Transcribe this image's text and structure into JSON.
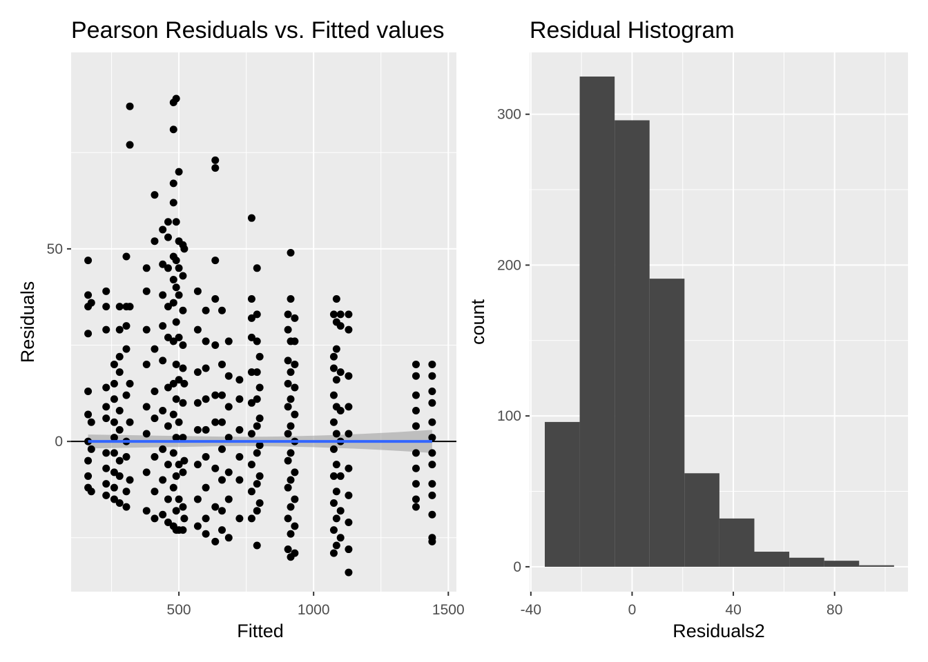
{
  "chart_data": [
    {
      "type": "scatter",
      "title": "Pearson Residuals vs. Fitted values",
      "xlabel": "Fitted",
      "ylabel": "Residuals",
      "xlim": [
        100,
        1530
      ],
      "ylim": [
        -39,
        101
      ],
      "x_ticks": [
        500,
        1000,
        1500
      ],
      "y_ticks": [
        0,
        50
      ],
      "grid": true,
      "hline": 0,
      "smooth": {
        "method": "lm",
        "color": "#3366FF",
        "band_color": "#999999",
        "x_range": [
          163,
          1440
        ],
        "y_values": [
          0,
          0
        ],
        "band_half_width": [
          1.2,
          3.0
        ]
      },
      "x_clusters": [
        163,
        230,
        260,
        280,
        305,
        330,
        380,
        415,
        440,
        460,
        480,
        500,
        515,
        570,
        600,
        635,
        660,
        685,
        725,
        770,
        800,
        860,
        915,
        930,
        1085,
        1100,
        1130,
        1380,
        1440
      ],
      "points": [
        [
          163,
          47
        ],
        [
          163,
          38
        ],
        [
          163,
          35
        ],
        [
          163,
          28
        ],
        [
          163,
          13
        ],
        [
          163,
          7
        ],
        [
          163,
          0
        ],
        [
          163,
          -5
        ],
        [
          163,
          -9
        ],
        [
          163,
          -12
        ],
        [
          175,
          36
        ],
        [
          175,
          5
        ],
        [
          175,
          -2
        ],
        [
          175,
          -13
        ],
        [
          230,
          39
        ],
        [
          230,
          35
        ],
        [
          230,
          29
        ],
        [
          230,
          14
        ],
        [
          230,
          9
        ],
        [
          230,
          6
        ],
        [
          230,
          -3
        ],
        [
          230,
          -7
        ],
        [
          230,
          -11
        ],
        [
          230,
          -14
        ],
        [
          260,
          20
        ],
        [
          260,
          15
        ],
        [
          260,
          11
        ],
        [
          260,
          5
        ],
        [
          260,
          1
        ],
        [
          260,
          -3
        ],
        [
          260,
          -8
        ],
        [
          260,
          -12
        ],
        [
          260,
          -15
        ],
        [
          280,
          35
        ],
        [
          280,
          29
        ],
        [
          280,
          22
        ],
        [
          280,
          18
        ],
        [
          280,
          8
        ],
        [
          280,
          3
        ],
        [
          280,
          -5
        ],
        [
          280,
          -9
        ],
        [
          280,
          -16
        ],
        [
          305,
          48
        ],
        [
          305,
          35
        ],
        [
          305,
          30
        ],
        [
          305,
          24
        ],
        [
          305,
          12
        ],
        [
          305,
          0
        ],
        [
          305,
          -4
        ],
        [
          305,
          -13
        ],
        [
          305,
          -17
        ],
        [
          318,
          87
        ],
        [
          318,
          77
        ],
        [
          318,
          35
        ],
        [
          318,
          15
        ],
        [
          318,
          5
        ],
        [
          318,
          -10
        ],
        [
          380,
          45
        ],
        [
          380,
          39
        ],
        [
          380,
          29
        ],
        [
          380,
          20
        ],
        [
          380,
          9
        ],
        [
          380,
          2
        ],
        [
          380,
          -8
        ],
        [
          380,
          -18
        ],
        [
          410,
          64
        ],
        [
          410,
          52
        ],
        [
          410,
          24
        ],
        [
          410,
          13
        ],
        [
          410,
          6
        ],
        [
          410,
          -4
        ],
        [
          410,
          -13
        ],
        [
          410,
          -20
        ],
        [
          440,
          55
        ],
        [
          440,
          46
        ],
        [
          440,
          38
        ],
        [
          440,
          30
        ],
        [
          440,
          21
        ],
        [
          440,
          8
        ],
        [
          440,
          -2
        ],
        [
          440,
          -10
        ],
        [
          440,
          -19
        ],
        [
          460,
          57
        ],
        [
          460,
          53
        ],
        [
          460,
          45
        ],
        [
          460,
          35
        ],
        [
          460,
          27
        ],
        [
          460,
          14
        ],
        [
          460,
          4
        ],
        [
          460,
          -6
        ],
        [
          460,
          -15
        ],
        [
          460,
          -21
        ],
        [
          480,
          81
        ],
        [
          480,
          88
        ],
        [
          480,
          67
        ],
        [
          480,
          62
        ],
        [
          480,
          48
        ],
        [
          480,
          42
        ],
        [
          480,
          36
        ],
        [
          480,
          26
        ],
        [
          480,
          15
        ],
        [
          480,
          7
        ],
        [
          480,
          -3
        ],
        [
          480,
          -12
        ],
        [
          480,
          -22
        ],
        [
          490,
          89
        ],
        [
          490,
          57
        ],
        [
          490,
          47
        ],
        [
          490,
          40
        ],
        [
          490,
          31
        ],
        [
          490,
          20
        ],
        [
          490,
          11
        ],
        [
          490,
          1
        ],
        [
          490,
          -9
        ],
        [
          490,
          -18
        ],
        [
          490,
          -23
        ],
        [
          500,
          70
        ],
        [
          500,
          52
        ],
        [
          500,
          45
        ],
        [
          500,
          38
        ],
        [
          500,
          27
        ],
        [
          500,
          16
        ],
        [
          500,
          5
        ],
        [
          500,
          -6
        ],
        [
          500,
          -15
        ],
        [
          500,
          -23
        ],
        [
          515,
          51
        ],
        [
          515,
          43
        ],
        [
          515,
          34
        ],
        [
          515,
          25
        ],
        [
          515,
          19
        ],
        [
          515,
          10
        ],
        [
          515,
          1
        ],
        [
          515,
          -8
        ],
        [
          515,
          -17
        ],
        [
          515,
          -23
        ],
        [
          520,
          50
        ],
        [
          520,
          15
        ],
        [
          520,
          -5
        ],
        [
          520,
          -20
        ],
        [
          570,
          39
        ],
        [
          570,
          29
        ],
        [
          570,
          18
        ],
        [
          570,
          10
        ],
        [
          570,
          3
        ],
        [
          570,
          -6
        ],
        [
          570,
          -15
        ],
        [
          570,
          -22
        ],
        [
          600,
          34
        ],
        [
          600,
          26
        ],
        [
          600,
          19
        ],
        [
          600,
          11
        ],
        [
          600,
          3
        ],
        [
          600,
          -4
        ],
        [
          600,
          -12
        ],
        [
          600,
          -20
        ],
        [
          600,
          -24
        ],
        [
          635,
          73
        ],
        [
          635,
          71
        ],
        [
          635,
          47
        ],
        [
          635,
          37
        ],
        [
          635,
          25
        ],
        [
          635,
          12
        ],
        [
          635,
          5
        ],
        [
          635,
          -7
        ],
        [
          635,
          -17
        ],
        [
          635,
          -26
        ],
        [
          660,
          34
        ],
        [
          660,
          20
        ],
        [
          660,
          12
        ],
        [
          660,
          5
        ],
        [
          660,
          -2
        ],
        [
          660,
          -10
        ],
        [
          660,
          -18
        ],
        [
          660,
          -23
        ],
        [
          685,
          26
        ],
        [
          685,
          17
        ],
        [
          685,
          9
        ],
        [
          685,
          1
        ],
        [
          685,
          -8
        ],
        [
          685,
          -15
        ],
        [
          685,
          -25
        ],
        [
          725,
          16
        ],
        [
          725,
          11
        ],
        [
          725,
          3
        ],
        [
          725,
          -4
        ],
        [
          725,
          -10
        ],
        [
          725,
          -20
        ],
        [
          770,
          58
        ],
        [
          770,
          37
        ],
        [
          770,
          32
        ],
        [
          770,
          27
        ],
        [
          770,
          18
        ],
        [
          770,
          10
        ],
        [
          770,
          2
        ],
        [
          770,
          -6
        ],
        [
          770,
          -13
        ],
        [
          770,
          -20
        ],
        [
          790,
          45
        ],
        [
          790,
          33
        ],
        [
          790,
          26
        ],
        [
          790,
          18
        ],
        [
          790,
          11
        ],
        [
          790,
          4
        ],
        [
          790,
          -3
        ],
        [
          790,
          -11
        ],
        [
          790,
          -18
        ],
        [
          790,
          -27
        ],
        [
          800,
          22
        ],
        [
          800,
          14
        ],
        [
          800,
          6
        ],
        [
          800,
          -1
        ],
        [
          800,
          -9
        ],
        [
          800,
          -16
        ],
        [
          905,
          33
        ],
        [
          905,
          29
        ],
        [
          905,
          21
        ],
        [
          905,
          15
        ],
        [
          905,
          9
        ],
        [
          905,
          2
        ],
        [
          905,
          -5
        ],
        [
          905,
          -12
        ],
        [
          905,
          -20
        ],
        [
          905,
          -28
        ],
        [
          915,
          49
        ],
        [
          915,
          37
        ],
        [
          915,
          26
        ],
        [
          915,
          18
        ],
        [
          915,
          11
        ],
        [
          915,
          4
        ],
        [
          915,
          -3
        ],
        [
          915,
          -10
        ],
        [
          915,
          -17
        ],
        [
          915,
          -24
        ],
        [
          915,
          -30
        ],
        [
          930,
          32
        ],
        [
          930,
          26
        ],
        [
          930,
          20
        ],
        [
          930,
          14
        ],
        [
          930,
          7
        ],
        [
          930,
          0
        ],
        [
          930,
          -8
        ],
        [
          930,
          -15
        ],
        [
          930,
          -22
        ],
        [
          930,
          -29
        ],
        [
          1075,
          33
        ],
        [
          1075,
          22
        ],
        [
          1075,
          19
        ],
        [
          1075,
          12
        ],
        [
          1075,
          5
        ],
        [
          1075,
          -2
        ],
        [
          1075,
          -9
        ],
        [
          1075,
          -16
        ],
        [
          1075,
          -23
        ],
        [
          1075,
          -29
        ],
        [
          1085,
          37
        ],
        [
          1085,
          31
        ],
        [
          1085,
          24
        ],
        [
          1085,
          16
        ],
        [
          1085,
          9
        ],
        [
          1085,
          2
        ],
        [
          1085,
          -6
        ],
        [
          1085,
          -13
        ],
        [
          1085,
          -20
        ],
        [
          1085,
          -27
        ],
        [
          1100,
          33
        ],
        [
          1100,
          30
        ],
        [
          1100,
          18
        ],
        [
          1100,
          8
        ],
        [
          1100,
          0
        ],
        [
          1100,
          -9
        ],
        [
          1100,
          -18
        ],
        [
          1100,
          -25
        ],
        [
          1130,
          33
        ],
        [
          1130,
          29
        ],
        [
          1130,
          17
        ],
        [
          1130,
          9
        ],
        [
          1130,
          2
        ],
        [
          1130,
          -7
        ],
        [
          1130,
          -14
        ],
        [
          1130,
          -21
        ],
        [
          1130,
          -28
        ],
        [
          1130,
          -34
        ],
        [
          1380,
          20
        ],
        [
          1380,
          17
        ],
        [
          1380,
          12
        ],
        [
          1380,
          8
        ],
        [
          1380,
          4
        ],
        [
          1380,
          -3
        ],
        [
          1380,
          -7
        ],
        [
          1380,
          -11
        ],
        [
          1380,
          -15
        ],
        [
          1380,
          -17
        ],
        [
          1440,
          20
        ],
        [
          1440,
          17
        ],
        [
          1440,
          13
        ],
        [
          1440,
          10
        ],
        [
          1440,
          5
        ],
        [
          1440,
          1
        ],
        [
          1440,
          -3
        ],
        [
          1440,
          -6
        ],
        [
          1440,
          -11
        ],
        [
          1440,
          -14
        ],
        [
          1440,
          -19
        ],
        [
          1440,
          -25
        ],
        [
          1440,
          -26
        ]
      ]
    },
    {
      "type": "bar",
      "subtype": "histogram",
      "title": "Residual Histogram",
      "xlabel": "Residuals2",
      "ylabel": "count",
      "xlim": [
        -40.5,
        109
      ],
      "ylim": [
        -16.5,
        341
      ],
      "x_ticks": [
        -40,
        0,
        40,
        80
      ],
      "y_ticks": [
        0,
        100,
        200,
        300
      ],
      "grid": true,
      "bar_color": "#474747",
      "bin_edges": [
        -34.5,
        -20.7,
        -6.9,
        6.9,
        20.7,
        34.5,
        48.3,
        62.1,
        75.9,
        89.7,
        103.5
      ],
      "counts": [
        96,
        325,
        296,
        191,
        62,
        32,
        10,
        6,
        4,
        1
      ]
    }
  ]
}
